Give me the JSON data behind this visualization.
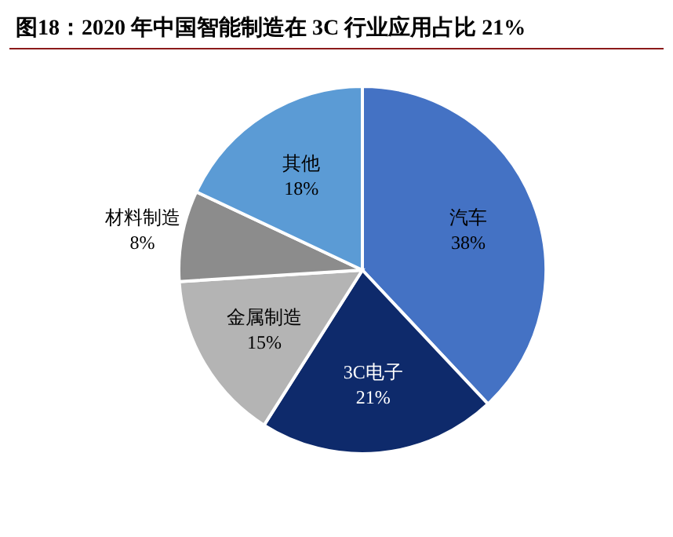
{
  "chart_data": {
    "type": "pie",
    "title": "图18：2020 年中国智能制造在 3C 行业应用占比 21%",
    "categories": [
      "汽车",
      "3C电子",
      "金属制造",
      "材料制造",
      "其他"
    ],
    "values": [
      38,
      21,
      15,
      8,
      18
    ],
    "value_labels": [
      "38%",
      "21%",
      "15%",
      "8%",
      "18%"
    ],
    "colors": [
      "#4472c4",
      "#0e2a6b",
      "#b4b4b4",
      "#8c8c8c",
      "#5b9bd5"
    ],
    "legend": false
  }
}
